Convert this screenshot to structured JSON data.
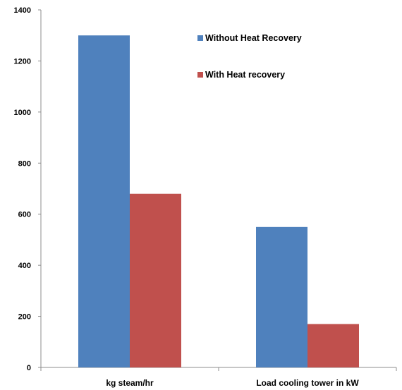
{
  "chart_data": {
    "type": "bar",
    "title": "",
    "xlabel": "",
    "ylabel": "",
    "categories": [
      "kg steam/hr",
      "Load cooling tower in kW"
    ],
    "series": [
      {
        "name": "Without Heat Recovery",
        "values": [
          1300,
          550
        ],
        "color": "#4f81bd"
      },
      {
        "name": "With Heat recovery",
        "values": [
          680,
          170
        ],
        "color": "#c0504d"
      }
    ],
    "ylim": [
      0,
      1400
    ],
    "yticks": [
      0,
      200,
      400,
      600,
      800,
      1000,
      1200,
      1400
    ],
    "grid": false,
    "legend_position": "top-right"
  }
}
